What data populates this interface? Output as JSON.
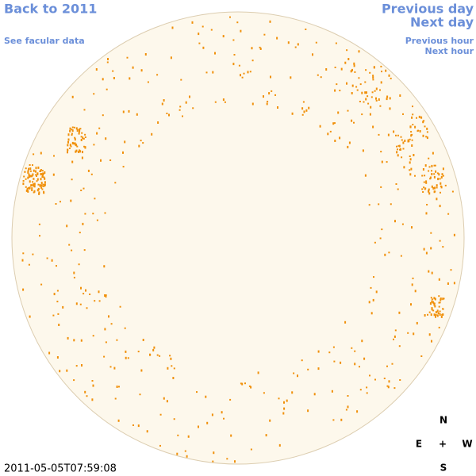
{
  "nav": {
    "back": "Back to 2011",
    "facular": "See facular data",
    "prev_day": "Previous day",
    "next_day": "Next day",
    "prev_hour": "Previous hour",
    "next_hour": "Next hour"
  },
  "timestamp": "2011-05-05T07:59:08",
  "compass": {
    "north": "N",
    "east": "E",
    "center": "+",
    "west": "W",
    "south": "S"
  }
}
